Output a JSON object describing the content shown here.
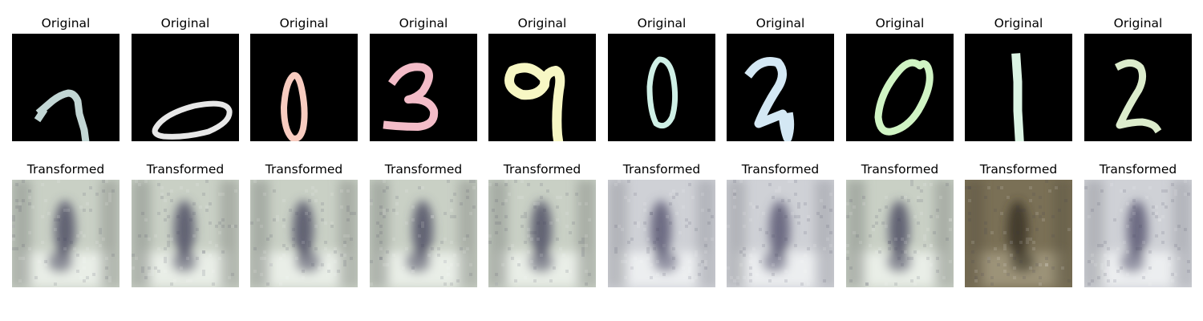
{
  "figure": {
    "background": "#ffffff",
    "rows": [
      {
        "kind": "original",
        "panels": [
          {
            "title": "Original",
            "digit": "7",
            "tint": "#c2d6d4"
          },
          {
            "title": "Original",
            "digit": "0",
            "tint": "#e8e8e8"
          },
          {
            "title": "Original",
            "digit": "0",
            "tint": "#f8ccc0"
          },
          {
            "title": "Original",
            "digit": "3",
            "tint": "#f3bcc8"
          },
          {
            "title": "Original",
            "digit": "9",
            "tint": "#f7f7c4"
          },
          {
            "title": "Original",
            "digit": "0",
            "tint": "#cff0e6"
          },
          {
            "title": "Original",
            "digit": "2",
            "tint": "#d4e8f4"
          },
          {
            "title": "Original",
            "digit": "0",
            "tint": "#d0f4c4"
          },
          {
            "title": "Original",
            "digit": "1",
            "tint": "#dcf4e4"
          },
          {
            "title": "Original",
            "digit": "2",
            "tint": "#dceccc"
          }
        ]
      },
      {
        "kind": "transformed",
        "panels": [
          {
            "title": "Transformed",
            "palette": "pale-green"
          },
          {
            "title": "Transformed",
            "palette": "pale-green"
          },
          {
            "title": "Transformed",
            "palette": "pale-green"
          },
          {
            "title": "Transformed",
            "palette": "pale-green"
          },
          {
            "title": "Transformed",
            "palette": "pale-green"
          },
          {
            "title": "Transformed",
            "palette": "pale-grey"
          },
          {
            "title": "Transformed",
            "palette": "pale-grey"
          },
          {
            "title": "Transformed",
            "palette": "pale-green"
          },
          {
            "title": "Transformed",
            "palette": "dark-olive"
          },
          {
            "title": "Transformed",
            "palette": "pale-grey"
          }
        ]
      }
    ]
  }
}
